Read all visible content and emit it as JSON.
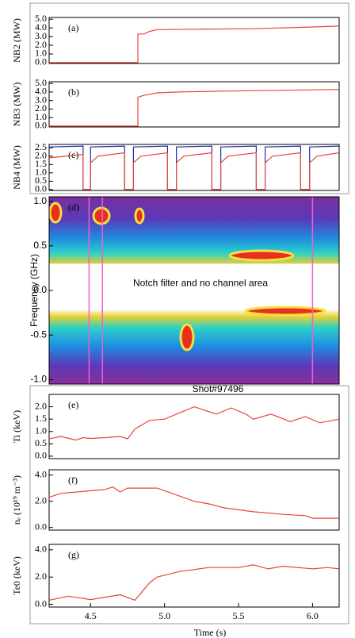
{
  "chart_data": [
    {
      "type": "line",
      "label": "(a)",
      "ylabel": "NB2 (MW)",
      "xlim": [
        4.22,
        6.18
      ],
      "ylim": [
        -0.1,
        5.2
      ],
      "yticks": [
        {
          "value": 0,
          "label": "0.0"
        },
        {
          "value": 1,
          "label": "1.0"
        },
        {
          "value": 2,
          "label": "2.0"
        },
        {
          "value": 3,
          "label": "3.0"
        },
        {
          "value": 4,
          "label": "4.0"
        },
        {
          "value": 5,
          "label": "5.0"
        }
      ],
      "series": [
        {
          "color": "#e8443a",
          "x": [
            4.22,
            4.82,
            4.82,
            4.86,
            4.9,
            4.95,
            5.2,
            5.6,
            6.0,
            6.18
          ],
          "values": [
            0,
            0,
            3.3,
            3.3,
            3.6,
            3.8,
            3.85,
            3.9,
            4.1,
            4.2
          ]
        }
      ]
    },
    {
      "type": "line",
      "label": "(b)",
      "ylabel": "NB3 (MW)",
      "xlim": [
        4.22,
        6.18
      ],
      "ylim": [
        -0.1,
        5.2
      ],
      "yticks": [
        {
          "value": 0,
          "label": "0.0"
        },
        {
          "value": 1,
          "label": "1.0"
        },
        {
          "value": 2,
          "label": "2.0"
        },
        {
          "value": 3,
          "label": "3.0"
        },
        {
          "value": 4,
          "label": "4.0"
        },
        {
          "value": 5,
          "label": "5.0"
        }
      ],
      "series": [
        {
          "color": "#e8443a",
          "x": [
            4.22,
            4.82,
            4.82,
            4.86,
            4.95,
            5.1,
            5.4,
            5.8,
            6.18
          ],
          "values": [
            0,
            0,
            3.4,
            3.6,
            3.9,
            4.0,
            4.1,
            4.2,
            4.3
          ]
        }
      ]
    },
    {
      "type": "line",
      "label": "(c)",
      "ylabel": "NB4 (MW)",
      "xlim": [
        4.22,
        6.18
      ],
      "ylim": [
        -0.05,
        2.7
      ],
      "yticks": [
        {
          "value": 0,
          "label": "0.0"
        },
        0.5,
        {
          "value": 1,
          "label": "1.0"
        },
        1.5,
        {
          "value": 2,
          "label": "2.0"
        },
        2.5
      ],
      "series": [
        {
          "color": "#1f2fa8",
          "x": [
            4.22,
            4.45,
            4.45,
            4.5,
            4.5,
            4.73,
            4.73,
            4.79,
            4.79,
            5.02,
            5.02,
            5.08,
            5.08,
            5.32,
            5.32,
            5.38,
            5.38,
            5.62,
            5.62,
            5.68,
            5.68,
            5.92,
            5.92,
            5.98,
            5.98,
            6.18
          ],
          "values": [
            2.55,
            2.6,
            0,
            0,
            2.55,
            2.6,
            0,
            0,
            2.55,
            2.6,
            0,
            0,
            2.55,
            2.6,
            0,
            0,
            2.55,
            2.6,
            0,
            0,
            2.55,
            2.6,
            0,
            0,
            2.55,
            2.6
          ]
        },
        {
          "color": "#e8443a",
          "x": [
            4.22,
            4.45,
            4.45,
            4.5,
            4.5,
            4.55,
            4.73,
            4.73,
            4.79,
            4.79,
            4.84,
            5.02,
            5.02,
            5.08,
            5.08,
            5.13,
            5.32,
            5.32,
            5.38,
            5.38,
            5.43,
            5.62,
            5.62,
            5.68,
            5.68,
            5.73,
            5.92,
            5.92,
            5.98,
            5.98,
            6.03,
            6.18
          ],
          "values": [
            1.9,
            2.1,
            0,
            0,
            1.6,
            2.0,
            2.2,
            0,
            0,
            1.6,
            2.0,
            2.2,
            0,
            0,
            1.6,
            2.0,
            2.2,
            0,
            0,
            1.6,
            2.0,
            2.2,
            0,
            0,
            1.6,
            2.0,
            2.2,
            0,
            0,
            1.6,
            2.0,
            2.2
          ]
        }
      ]
    },
    {
      "type": "spectrogram",
      "label": "(d)",
      "ylabel": "Frequency (GHz)",
      "xlim": [
        4.22,
        6.18
      ],
      "ylim": [
        -1.05,
        1.05
      ],
      "yticks": [
        {
          "value": -1,
          "label": "-1.0"
        },
        -0.5,
        {
          "value": 0,
          "label": "0.0"
        },
        0.5,
        {
          "value": 1,
          "label": "1.0"
        }
      ],
      "annotation": "Notch filter and no channel area",
      "shot": "Shot#97496",
      "markers": [
        4.49,
        4.58,
        6.0
      ],
      "marker_color": "#f25fd0"
    },
    {
      "type": "line",
      "label": "(e)",
      "ylabel": "Ti (keV)",
      "xlim": [
        4.22,
        6.18
      ],
      "ylim": [
        -0.1,
        2.5
      ],
      "yticks": [
        {
          "value": 0,
          "label": "0.0"
        },
        0.5,
        {
          "value": 1,
          "label": "1.0"
        },
        1.5,
        {
          "value": 2,
          "label": "2.0"
        }
      ],
      "series": [
        {
          "color": "#e8443a",
          "x": [
            4.22,
            4.3,
            4.4,
            4.45,
            4.5,
            4.6,
            4.7,
            4.75,
            4.8,
            4.9,
            5.0,
            5.1,
            5.2,
            5.3,
            5.35,
            5.45,
            5.55,
            5.6,
            5.72,
            5.85,
            5.95,
            6.05,
            6.18
          ],
          "values": [
            0.7,
            0.8,
            0.65,
            0.75,
            0.72,
            0.75,
            0.8,
            0.7,
            1.1,
            1.45,
            1.5,
            1.75,
            2.0,
            1.8,
            1.7,
            1.95,
            1.7,
            1.5,
            1.7,
            1.4,
            1.6,
            1.35,
            1.5
          ]
        }
      ]
    },
    {
      "type": "line",
      "label": "(f)",
      "ylabel": "nₑ (10¹⁹ m⁻³)",
      "xlim": [
        4.22,
        6.18
      ],
      "ylim": [
        -0.2,
        4.4
      ],
      "yticks": [
        {
          "value": 0,
          "label": "0.0"
        },
        {
          "value": 2,
          "label": "2.0"
        },
        {
          "value": 4,
          "label": "4.0"
        }
      ],
      "series": [
        {
          "color": "#e8443a",
          "x": [
            4.22,
            4.3,
            4.4,
            4.5,
            4.6,
            4.65,
            4.7,
            4.75,
            4.85,
            4.95,
            5.05,
            5.2,
            5.3,
            5.4,
            5.6,
            5.8,
            5.95,
            6.0,
            6.18
          ],
          "values": [
            2.3,
            2.6,
            2.7,
            2.8,
            2.9,
            3.1,
            2.7,
            3.0,
            3.0,
            3.0,
            2.6,
            2.0,
            1.8,
            1.5,
            1.2,
            1.0,
            0.9,
            0.7,
            0.7
          ]
        }
      ]
    },
    {
      "type": "line",
      "label": "(g)",
      "ylabel": "Te0 (keV)",
      "xlim": [
        4.22,
        6.18
      ],
      "ylim": [
        -0.2,
        4.4
      ],
      "xlabel": "Time (s)",
      "yticks": [
        {
          "value": 0,
          "label": "0.0"
        },
        {
          "value": 2,
          "label": "2.0"
        },
        {
          "value": 4,
          "label": "4.0"
        }
      ],
      "xticks": [
        4.5,
        {
          "value": 5,
          "label": "5.0"
        },
        5.5,
        {
          "value": 6,
          "label": "6.0"
        }
      ],
      "series": [
        {
          "color": "#e8443a",
          "x": [
            4.22,
            4.35,
            4.5,
            4.7,
            4.8,
            4.9,
            4.95,
            5.1,
            5.3,
            5.5,
            5.6,
            5.7,
            5.8,
            6.0,
            6.1,
            6.18
          ],
          "values": [
            0.3,
            0.6,
            0.35,
            0.7,
            0.3,
            1.6,
            2.0,
            2.4,
            2.7,
            2.7,
            2.9,
            2.6,
            2.8,
            2.6,
            2.7,
            2.6
          ]
        }
      ]
    }
  ]
}
